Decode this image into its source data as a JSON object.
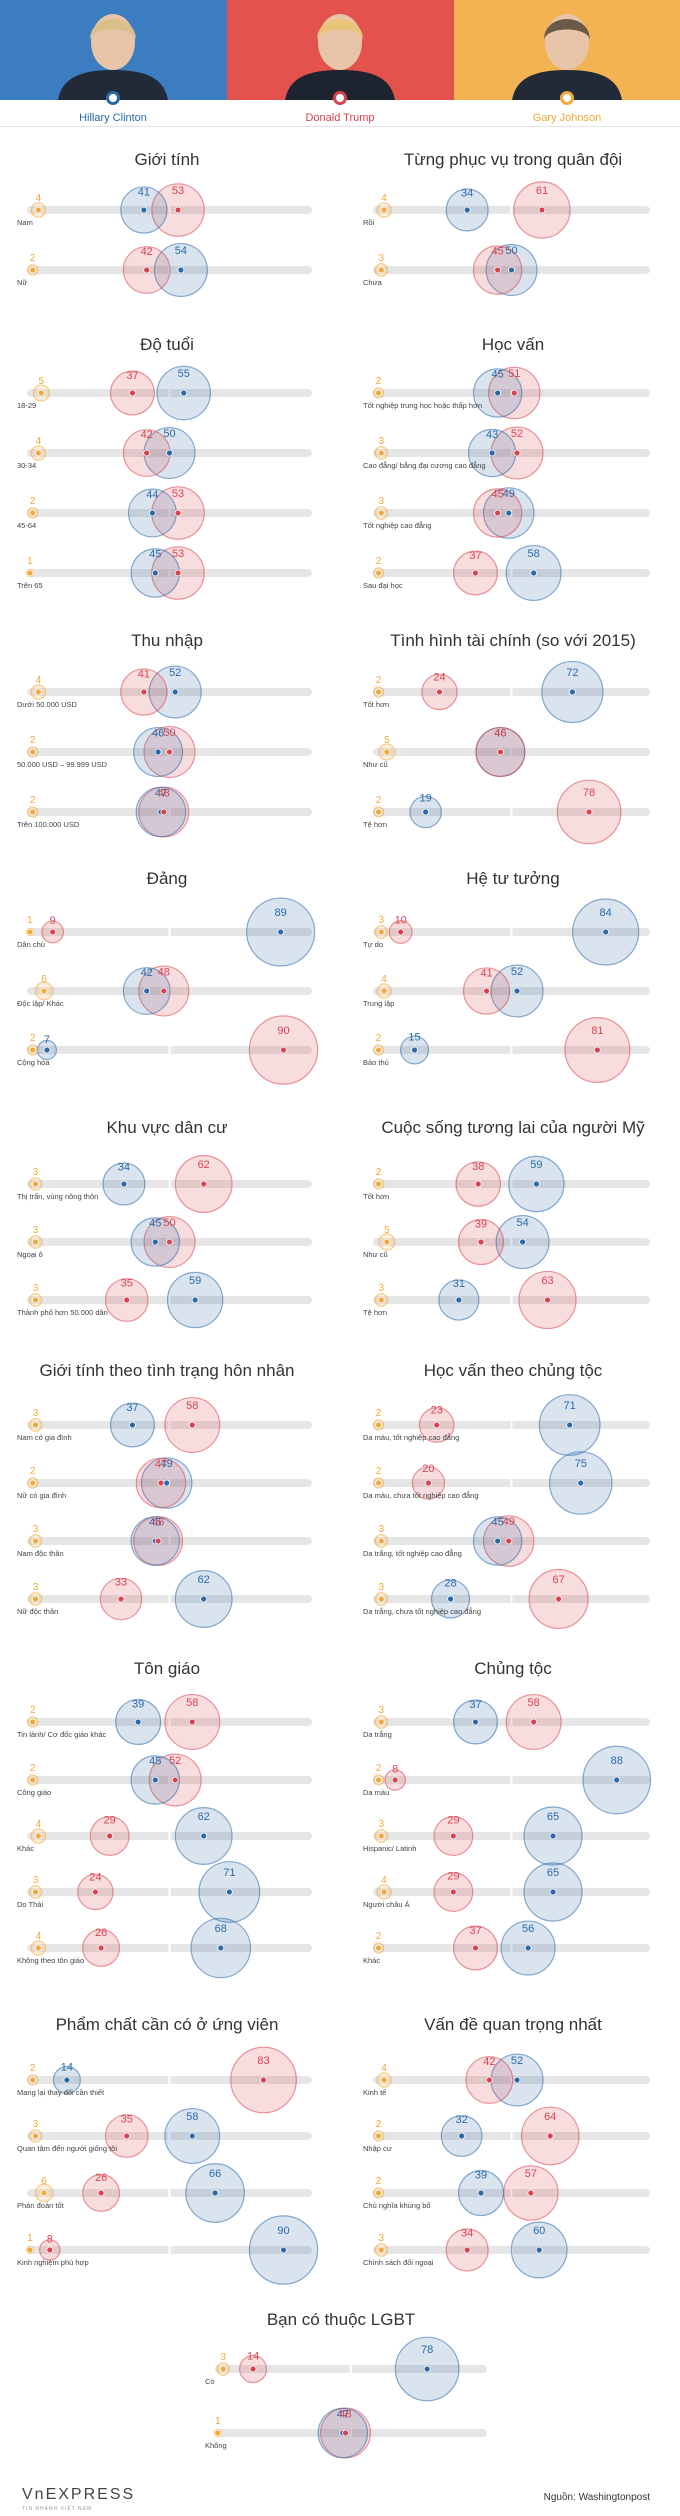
{
  "header": {
    "candidates": [
      {
        "name": "Hillary Clinton",
        "color": "#2b6aa8",
        "panel_color": "#3b7dc0",
        "portrait": "portrait-hillary-clinton"
      },
      {
        "name": "Donald Trump",
        "color": "#d9434f",
        "panel_color": "#e4524e",
        "portrait": "portrait-donald-trump"
      },
      {
        "name": "Gary Johnson",
        "color": "#f0a93a",
        "panel_color": "#f3b352",
        "portrait": "portrait-gary-johnson"
      }
    ]
  },
  "colors": {
    "clinton": "#2b6aa8",
    "trump": "#d9434f",
    "johnson": "#f0a93a",
    "track": "#e6e6e6"
  },
  "chart_data": [
    {
      "type": "bubble",
      "title": "Giới tính",
      "rows": [
        {
          "label": "Nam",
          "values": [
            41,
            53,
            4
          ]
        },
        {
          "label": "Nữ",
          "values": [
            54,
            42,
            2
          ]
        }
      ]
    },
    {
      "type": "bubble",
      "title": "Từng phục vụ trong quân đội",
      "rows": [
        {
          "label": "Rồi",
          "values": [
            34,
            61,
            4
          ]
        },
        {
          "label": "Chưa",
          "values": [
            50,
            45,
            3
          ]
        }
      ]
    },
    {
      "type": "bubble",
      "title": "Độ tuổi",
      "rows": [
        {
          "label": "18-29",
          "values": [
            55,
            37,
            5
          ]
        },
        {
          "label": "30-34",
          "values": [
            50,
            42,
            4
          ]
        },
        {
          "label": "45-64",
          "values": [
            44,
            53,
            2
          ]
        },
        {
          "label": "Trên 65",
          "values": [
            45,
            53,
            1
          ]
        }
      ]
    },
    {
      "type": "bubble",
      "title": "Học vấn",
      "rows": [
        {
          "label": "Tốt nghiệp trung học hoặc thấp hơn",
          "values": [
            45,
            51,
            2
          ]
        },
        {
          "label": "Cao đẳng/ bằng đại cương cao đẳng",
          "values": [
            43,
            52,
            3
          ]
        },
        {
          "label": "Tốt nghiệp cao đẳng",
          "values": [
            49,
            45,
            3
          ]
        },
        {
          "label": "Sau đại học",
          "values": [
            58,
            37,
            2
          ]
        }
      ]
    },
    {
      "type": "bubble",
      "title": "Thu nhập",
      "rows": [
        {
          "label": "Dưới 50.000 USD",
          "values": [
            52,
            41,
            4
          ]
        },
        {
          "label": "50.000 USD – 99.999 USD",
          "values": [
            46,
            50,
            2
          ]
        },
        {
          "label": "Trên 100.000 USD",
          "values": [
            47,
            48,
            2
          ]
        }
      ]
    },
    {
      "type": "bubble",
      "title": "Tình hình tài chính (so với 2015)",
      "rows": [
        {
          "label": "Tốt hơn",
          "values": [
            72,
            24,
            2
          ]
        },
        {
          "label": "Như cũ",
          "values": [
            46,
            46,
            5
          ]
        },
        {
          "label": "Tệ hơn",
          "values": [
            19,
            78,
            2
          ]
        }
      ]
    },
    {
      "type": "bubble",
      "title": "Đảng",
      "rows": [
        {
          "label": "Dân chủ",
          "values": [
            89,
            9,
            1
          ]
        },
        {
          "label": "Độc lập/ Khác",
          "values": [
            42,
            48,
            6
          ]
        },
        {
          "label": "Cộng hòa",
          "values": [
            7,
            90,
            2
          ]
        }
      ]
    },
    {
      "type": "bubble",
      "title": "Hệ tư tưởng",
      "rows": [
        {
          "label": "Tự do",
          "values": [
            84,
            10,
            3
          ]
        },
        {
          "label": "Trung lập",
          "values": [
            52,
            41,
            4
          ]
        },
        {
          "label": "Bảo thủ",
          "values": [
            15,
            81,
            2
          ]
        }
      ]
    },
    {
      "type": "bubble",
      "title": "Khu vực dân cư",
      "rows": [
        {
          "label": "Thị trấn, vùng nông thôn",
          "values": [
            34,
            62,
            3
          ]
        },
        {
          "label": "Ngoại ô",
          "values": [
            45,
            50,
            3
          ]
        },
        {
          "label": "Thành phố hơn 50.000 dân",
          "values": [
            59,
            35,
            3
          ]
        }
      ]
    },
    {
      "type": "bubble",
      "title": "Cuộc sống tương lai của người Mỹ",
      "rows": [
        {
          "label": "Tốt hơn",
          "values": [
            59,
            38,
            2
          ]
        },
        {
          "label": "Như cũ",
          "values": [
            54,
            39,
            5
          ]
        },
        {
          "label": "Tệ hơn",
          "values": [
            31,
            63,
            3
          ]
        }
      ]
    },
    {
      "type": "bubble",
      "title": "Giới tính theo tình trạng hôn nhân",
      "rows": [
        {
          "label": "Nam có gia đình",
          "values": [
            37,
            58,
            3
          ]
        },
        {
          "label": "Nữ có gia đình",
          "values": [
            49,
            47,
            2
          ]
        },
        {
          "label": "Nam độc thân",
          "values": [
            45,
            46,
            3
          ]
        },
        {
          "label": "Nữ độc thân",
          "values": [
            62,
            33,
            3
          ]
        }
      ]
    },
    {
      "type": "bubble",
      "title": "Học vấn theo chủng tộc",
      "rows": [
        {
          "label": "Da màu, tốt nghiệp cao đẳng",
          "values": [
            71,
            23,
            2
          ]
        },
        {
          "label": "Da màu, chưa tốt nghiệp cao đẳng",
          "values": [
            75,
            20,
            2
          ]
        },
        {
          "label": "Da trắng, tốt nghiệp cao đẳng",
          "values": [
            45,
            49,
            3
          ]
        },
        {
          "label": "Da trắng, chưa tốt nghiệp cao đẳng",
          "values": [
            28,
            67,
            3
          ]
        }
      ]
    },
    {
      "type": "bubble",
      "title": "Tôn giáo",
      "rows": [
        {
          "label": "Tin lành/ Cơ đốc giáo khác",
          "values": [
            39,
            58,
            2
          ]
        },
        {
          "label": "Công giáo",
          "values": [
            45,
            52,
            2
          ]
        },
        {
          "label": "Khác",
          "values": [
            62,
            29,
            4
          ]
        },
        {
          "label": "Do Thái",
          "values": [
            71,
            24,
            3
          ]
        },
        {
          "label": "Không theo tôn giáo",
          "values": [
            68,
            26,
            4
          ]
        }
      ]
    },
    {
      "type": "bubble",
      "title": "Chủng tộc",
      "rows": [
        {
          "label": "Da trắng",
          "values": [
            37,
            58,
            3
          ]
        },
        {
          "label": "Da màu",
          "values": [
            88,
            8,
            2
          ]
        },
        {
          "label": "Hispanic/ Latinh",
          "values": [
            65,
            29,
            3
          ]
        },
        {
          "label": "Người châu Á",
          "values": [
            65,
            29,
            4
          ]
        },
        {
          "label": "Khác",
          "values": [
            56,
            37,
            2
          ]
        }
      ]
    },
    {
      "type": "bubble",
      "title": "Phẩm chất cần có ở ứng viên",
      "rows": [
        {
          "label": "Mang lại thay đổi cần thiết",
          "values": [
            14,
            83,
            2
          ]
        },
        {
          "label": "Quan tâm đến người giống tôi",
          "values": [
            58,
            35,
            3
          ]
        },
        {
          "label": "Phán đoán tốt",
          "values": [
            66,
            26,
            6
          ]
        },
        {
          "label": "Kinh nghiệm phù hợp",
          "values": [
            90,
            8,
            1
          ]
        }
      ]
    },
    {
      "type": "bubble",
      "title": "Vấn đề quan trọng nhất",
      "rows": [
        {
          "label": "Kinh tế",
          "values": [
            52,
            42,
            4
          ]
        },
        {
          "label": "Nhập cư",
          "values": [
            32,
            64,
            2
          ]
        },
        {
          "label": "Chủ nghĩa khủng bố",
          "values": [
            39,
            57,
            2
          ]
        },
        {
          "label": "Chính sách đối ngoại",
          "values": [
            60,
            34,
            3
          ]
        }
      ]
    },
    {
      "type": "bubble",
      "title": "Bạn có thuộc LGBT",
      "rows": [
        {
          "label": "Có",
          "values": [
            78,
            14,
            3
          ]
        },
        {
          "label": "Không",
          "values": [
            47,
            48,
            1
          ]
        }
      ]
    }
  ],
  "footer": {
    "logo_text": "VnEXPRESS",
    "logo_subtext": "TIN NHANH VIỆT NAM",
    "source": "Nguồn: Washingtonpost"
  }
}
